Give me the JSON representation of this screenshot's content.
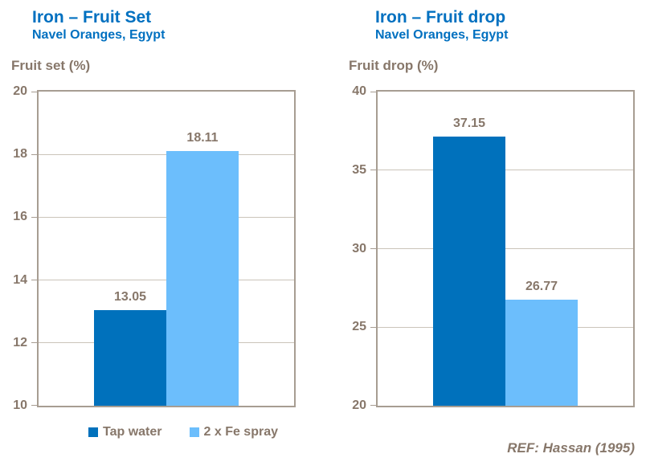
{
  "colors": {
    "title_blue": "#0070C0",
    "bar_dark_blue": "#0071BC",
    "bar_light_blue": "#6CBEFC",
    "axis_text": "#87776A",
    "plot_border": "#A79D92",
    "gridline": "#CBC4BA"
  },
  "chart_data": [
    {
      "type": "bar",
      "title": "Iron – Fruit Set",
      "subtitle": "Navel Oranges, Egypt",
      "ylabel": "Fruit set (%)",
      "ylim": [
        10,
        20
      ],
      "yticks": [
        10,
        12,
        14,
        16,
        18,
        20
      ],
      "grid": true,
      "legend_position": "bottom",
      "categories": [
        "Tap water",
        "2 x Fe spray"
      ],
      "values": [
        13.05,
        18.11
      ],
      "value_labels": [
        "13.05",
        "18.11"
      ],
      "bar_colors": [
        "#0071BC",
        "#6CBEFC"
      ]
    },
    {
      "type": "bar",
      "title": "Iron – Fruit drop",
      "subtitle": "Navel Oranges, Egypt",
      "ylabel": "Fruit drop (%)",
      "ylim": [
        20,
        40
      ],
      "yticks": [
        20,
        25,
        30,
        35,
        40
      ],
      "grid": true,
      "legend_position": "none",
      "categories": [
        "Tap water",
        "2 x Fe spray"
      ],
      "values": [
        37.15,
        26.77
      ],
      "value_labels": [
        "37.15",
        "26.77"
      ],
      "bar_colors": [
        "#0071BC",
        "#6CBEFC"
      ]
    }
  ],
  "legend": {
    "items": [
      {
        "label": "Tap water",
        "color": "#0071BC"
      },
      {
        "label": "2 x Fe spray",
        "color": "#6CBEFC"
      }
    ]
  },
  "footer": {
    "ref_label": "REF: Hassan (1995)"
  }
}
